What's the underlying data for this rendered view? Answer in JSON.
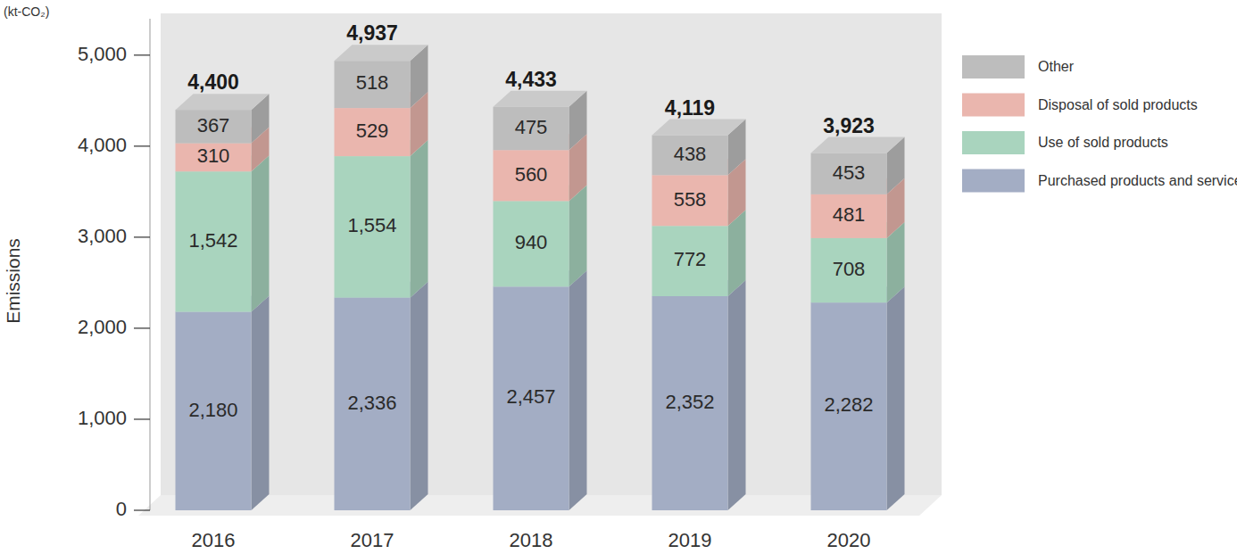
{
  "chart_data": {
    "type": "bar",
    "stacked": true,
    "data_labels": true,
    "grid": false,
    "legend": "right",
    "y_label": "Emissions",
    "y_unit": "(kt-CO₂)",
    "categories": [
      "2016",
      "2017",
      "2018",
      "2019",
      "2020"
    ],
    "series": [
      {
        "name": "Purchased products and services",
        "color": "#a3adc4",
        "values": [
          2180,
          2336,
          2457,
          2352,
          2282
        ],
        "value_labels": [
          "2,180",
          "2,336",
          "2,457",
          "2,352",
          "2,282"
        ]
      },
      {
        "name": "Use of sold products",
        "color": "#a9d4be",
        "values": [
          1542,
          1554,
          940,
          772,
          708
        ],
        "value_labels": [
          "1,542",
          "1,554",
          "940",
          "772",
          "708"
        ]
      },
      {
        "name": "Disposal of sold products",
        "color": "#eab6ae",
        "values": [
          310,
          529,
          560,
          558,
          481
        ]
      },
      {
        "name": "Other",
        "color": "#bdbdbd",
        "values": [
          367,
          518,
          475,
          438,
          453
        ]
      }
    ],
    "totals": [
      4400,
      4937,
      4433,
      4119,
      3923
    ],
    "total_labels": [
      "4,400",
      "4,937",
      "4,433",
      "4,119",
      "3,923"
    ],
    "ylim": [
      0,
      5400
    ],
    "yticks": [
      0,
      {
        "value": 1000,
        "label": "1,000"
      },
      {
        "value": 2000,
        "label": "2,000"
      },
      {
        "value": 3000,
        "label": "3,000"
      },
      {
        "value": 4000,
        "label": "4,000"
      },
      {
        "value": 5000,
        "label": "5,000"
      }
    ]
  }
}
